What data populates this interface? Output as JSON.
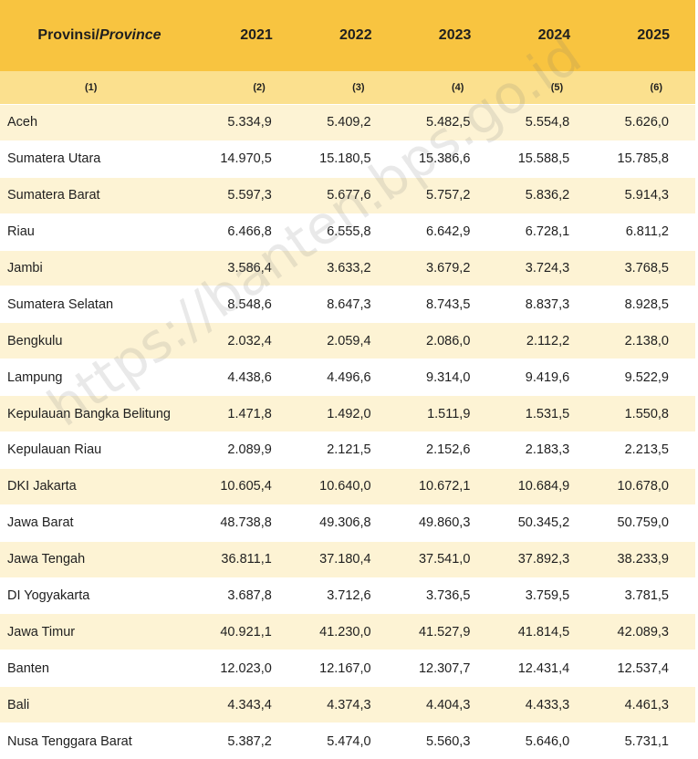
{
  "table": {
    "header": {
      "province_label": "Provinsi/",
      "province_label_en": "Province",
      "years": [
        "2021",
        "2022",
        "2023",
        "2024",
        "2025"
      ]
    },
    "column_numbers": [
      "(1)",
      "(2)",
      "(3)",
      "(4)",
      "(5)",
      "(6)"
    ],
    "rows": [
      {
        "province": "Aceh",
        "values": [
          "5.334,9",
          "5.409,2",
          "5.482,5",
          "5.554,8",
          "5.626,0"
        ]
      },
      {
        "province": "Sumatera Utara",
        "values": [
          "14.970,5",
          "15.180,5",
          "15.386,6",
          "15.588,5",
          "15.785,8"
        ]
      },
      {
        "province": "Sumatera Barat",
        "values": [
          "5.597,3",
          "5.677,6",
          "5.757,2",
          "5.836,2",
          "5.914,3"
        ]
      },
      {
        "province": "Riau",
        "values": [
          "6.466,8",
          "6.555,8",
          "6.642,9",
          "6.728,1",
          "6.811,2"
        ]
      },
      {
        "province": "Jambi",
        "values": [
          "3.586,4",
          "3.633,2",
          "3.679,2",
          "3.724,3",
          "3.768,5"
        ]
      },
      {
        "province": "Sumatera Selatan",
        "values": [
          "8.548,6",
          "8.647,3",
          "8.743,5",
          "8.837,3",
          "8.928,5"
        ]
      },
      {
        "province": "Bengkulu",
        "values": [
          "2.032,4",
          "2.059,4",
          "2.086,0",
          "2.112,2",
          "2.138,0"
        ]
      },
      {
        "province": "Lampung",
        "values": [
          "4.438,6",
          "4.496,6",
          "9.314,0",
          "9.419,6",
          "9.522,9"
        ]
      },
      {
        "province": "Kepulauan Bangka Belitung",
        "values": [
          "1.471,8",
          "1.492,0",
          "1.511,9",
          "1.531,5",
          "1.550,8"
        ]
      },
      {
        "province": "Kepulauan Riau",
        "values": [
          "2.089,9",
          "2.121,5",
          "2.152,6",
          "2.183,3",
          "2.213,5"
        ]
      },
      {
        "province": "DKI Jakarta",
        "values": [
          "10.605,4",
          "10.640,0",
          "10.672,1",
          "10.684,9",
          "10.678,0"
        ]
      },
      {
        "province": "Jawa Barat",
        "values": [
          "48.738,8",
          "49.306,8",
          "49.860,3",
          "50.345,2",
          "50.759,0"
        ]
      },
      {
        "province": "Jawa Tengah",
        "values": [
          "36.811,1",
          "37.180,4",
          "37.541,0",
          "37.892,3",
          "38.233,9"
        ]
      },
      {
        "province": "DI Yogyakarta",
        "values": [
          "3.687,8",
          "3.712,6",
          "3.736,5",
          "3.759,5",
          "3.781,5"
        ]
      },
      {
        "province": "Jawa Timur",
        "values": [
          "40.921,1",
          "41.230,0",
          "41.527,9",
          "41.814,5",
          "42.089,3"
        ]
      },
      {
        "province": "Banten",
        "values": [
          "12.023,0",
          "12.167,0",
          "12.307,7",
          "12.431,4",
          "12.537,4"
        ]
      },
      {
        "province": "Bali",
        "values": [
          "4.343,4",
          "4.374,3",
          "4.404,3",
          "4.433,3",
          "4.461,3"
        ]
      },
      {
        "province": "Nusa Tenggara Barat",
        "values": [
          "5.387,2",
          "5.474,0",
          "5.560,3",
          "5.646,0",
          "5.731,1"
        ]
      }
    ]
  },
  "watermark": "https://banten.bps.go.id"
}
